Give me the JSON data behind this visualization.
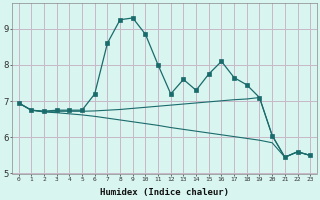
{
  "xlabel": "Humidex (Indice chaleur)",
  "background_color": "#d8f5f0",
  "grid_color": "#c8b8c8",
  "line_color": "#1a6b6b",
  "xlim": [
    -0.5,
    23.5
  ],
  "ylim": [
    5.0,
    9.7
  ],
  "yticks": [
    5,
    6,
    7,
    8,
    9
  ],
  "xticks": [
    0,
    1,
    2,
    3,
    4,
    5,
    6,
    7,
    8,
    9,
    10,
    11,
    12,
    13,
    14,
    15,
    16,
    17,
    18,
    19,
    20,
    21,
    22,
    23
  ],
  "line1_x": [
    0,
    1,
    2,
    3,
    4,
    5,
    6,
    7,
    8,
    9,
    10,
    11,
    12,
    13,
    14,
    15,
    16,
    17,
    18,
    19,
    20,
    21,
    22,
    23
  ],
  "line1_y": [
    6.95,
    6.75,
    6.72,
    6.75,
    6.75,
    6.75,
    7.2,
    8.6,
    9.25,
    9.3,
    8.85,
    8.0,
    7.2,
    7.6,
    7.3,
    7.75,
    8.1,
    7.65,
    7.45,
    7.1,
    6.05,
    5.45,
    5.6,
    5.5
  ],
  "line2_x": [
    0,
    1,
    2,
    3,
    4,
    5,
    6,
    7,
    8,
    9,
    10,
    11,
    12,
    13,
    14,
    15,
    16,
    17,
    18,
    19,
    20,
    21,
    22,
    23
  ],
  "line2_y": [
    6.95,
    6.75,
    6.72,
    6.72,
    6.72,
    6.72,
    6.73,
    6.75,
    6.77,
    6.8,
    6.83,
    6.86,
    6.89,
    6.92,
    6.95,
    6.98,
    7.01,
    7.04,
    7.06,
    7.1,
    6.05,
    5.45,
    5.6,
    5.5
  ],
  "line3_x": [
    0,
    1,
    2,
    3,
    4,
    5,
    6,
    7,
    8,
    9,
    10,
    11,
    12,
    13,
    14,
    15,
    16,
    17,
    18,
    19,
    20,
    21,
    22,
    23
  ],
  "line3_y": [
    6.95,
    6.75,
    6.7,
    6.68,
    6.65,
    6.62,
    6.58,
    6.53,
    6.48,
    6.43,
    6.38,
    6.33,
    6.27,
    6.22,
    6.17,
    6.12,
    6.07,
    6.02,
    5.97,
    5.92,
    5.85,
    5.45,
    5.6,
    5.5
  ]
}
